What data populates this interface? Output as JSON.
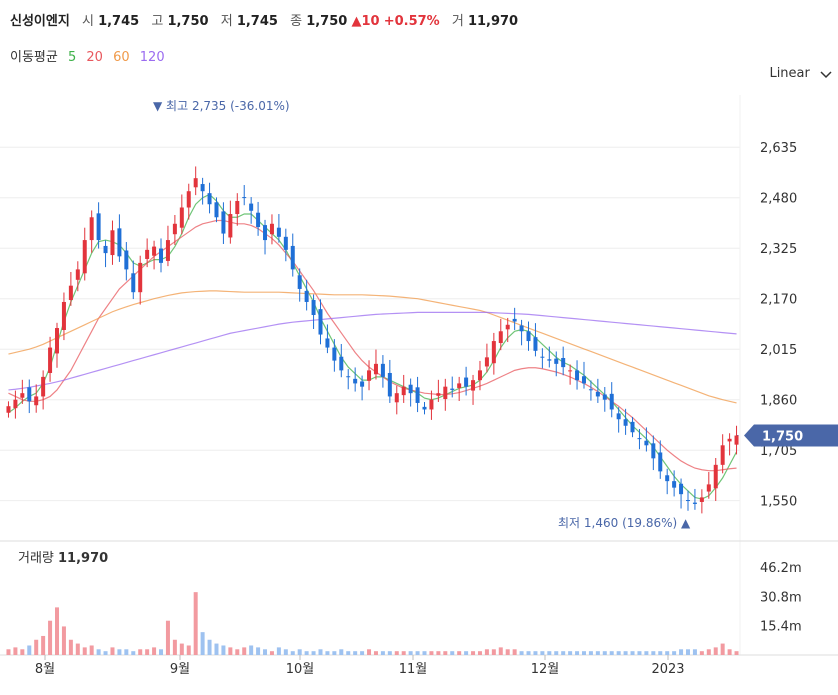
{
  "header": {
    "name": "신성이엔지",
    "open_label": "시",
    "open": "1,745",
    "high_label": "고",
    "high": "1,750",
    "low_label": "저",
    "low": "1,745",
    "close_label": "종",
    "close": "1,750",
    "change_arrow": "▲",
    "change": "10",
    "change_pct": "+0.57%",
    "volume_label": "거",
    "volume": "11,970"
  },
  "ma_legend": {
    "title": "이동평균",
    "items": [
      {
        "label": "5",
        "color": "#3fb24a"
      },
      {
        "label": "20",
        "color": "#e8585e"
      },
      {
        "label": "60",
        "color": "#f09a4a"
      },
      {
        "label": "120",
        "color": "#9b6cf0"
      }
    ]
  },
  "scale_selector": {
    "label": "Linear",
    "icon": "chevron-down-icon"
  },
  "colors": {
    "up": "#e2343c",
    "down": "#1f6fd6",
    "current_tag": "#4a67a8",
    "annot": "#4a67a8"
  },
  "chart_data": {
    "type": "candlestick",
    "price_axis": {
      "ticks": [
        "2,635",
        "2,480",
        "2,325",
        "2,170",
        "2,015",
        "1,860",
        "1,705",
        "1,550"
      ],
      "range": [
        1460,
        2780
      ]
    },
    "volume_axis": {
      "title": "거래량",
      "current": "11,970",
      "ticks": [
        "46.2m",
        "30.8m",
        "15.4m"
      ]
    },
    "x_labels": [
      "8월",
      "9월",
      "10월",
      "11월",
      "12월",
      "2023"
    ],
    "current_price": "1,750",
    "max_annotation": {
      "arrow": "▼",
      "label": "최고",
      "value": "2,735",
      "pct": "(-36.01%)"
    },
    "min_annotation": {
      "arrow": "▲",
      "label": "최저",
      "value": "1,460",
      "pct": "(19.86%)"
    },
    "closes": [
      1840,
      1860,
      1880,
      1855,
      1870,
      1930,
      2020,
      2080,
      2160,
      2210,
      2260,
      2350,
      2420,
      2350,
      2310,
      2380,
      2300,
      2260,
      2190,
      2280,
      2320,
      2330,
      2280,
      2350,
      2400,
      2450,
      2500,
      2540,
      2500,
      2460,
      2420,
      2370,
      2430,
      2470,
      2480,
      2440,
      2390,
      2350,
      2400,
      2360,
      2320,
      2260,
      2200,
      2160,
      2120,
      2060,
      2020,
      1980,
      1950,
      1930,
      1910,
      1900,
      1950,
      1970,
      1930,
      1870,
      1880,
      1900,
      1880,
      1850,
      1830,
      1860,
      1880,
      1900,
      1890,
      1910,
      1900,
      1920,
      1950,
      1990,
      2040,
      2070,
      2090,
      2100,
      2070,
      2040,
      2010,
      1990,
      1980,
      1970,
      1960,
      1950,
      1920,
      1910,
      1890,
      1870,
      1860,
      1830,
      1800,
      1780,
      1760,
      1740,
      1720,
      1680,
      1640,
      1610,
      1590,
      1570,
      1550,
      1540,
      1560,
      1600,
      1660,
      1720,
      1740,
      1750
    ],
    "ma_series": [
      {
        "period": "5",
        "values": [
          1820,
          1835,
          1855,
          1870,
          1880,
          1910,
          1960,
          2030,
          2100,
          2160,
          2210,
          2260,
          2310,
          2345,
          2350,
          2345,
          2335,
          2310,
          2280,
          2270,
          2280,
          2290,
          2290,
          2300,
          2330,
          2370,
          2420,
          2460,
          2480,
          2490,
          2470,
          2440,
          2420,
          2420,
          2430,
          2430,
          2410,
          2390,
          2370,
          2350,
          2320,
          2280,
          2240,
          2200,
          2160,
          2110,
          2070,
          2030,
          1990,
          1960,
          1940,
          1920,
          1920,
          1930,
          1930,
          1920,
          1910,
          1900,
          1890,
          1880,
          1865,
          1860,
          1865,
          1875,
          1885,
          1895,
          1900,
          1905,
          1920,
          1945,
          1980,
          2020,
          2050,
          2070,
          2075,
          2070,
          2050,
          2030,
          2010,
          1990,
          1975,
          1965,
          1950,
          1935,
          1915,
          1895,
          1875,
          1855,
          1830,
          1805,
          1780,
          1760,
          1740,
          1715,
          1685,
          1655,
          1625,
          1600,
          1580,
          1560,
          1555,
          1565,
          1590,
          1620,
          1660,
          1700
        ]
      },
      {
        "period": "20",
        "values": [
          1880,
          1870,
          1860,
          1855,
          1855,
          1860,
          1870,
          1890,
          1920,
          1950,
          1990,
          2030,
          2070,
          2110,
          2140,
          2170,
          2200,
          2220,
          2240,
          2260,
          2280,
          2300,
          2315,
          2330,
          2345,
          2360,
          2375,
          2390,
          2400,
          2405,
          2410,
          2410,
          2405,
          2400,
          2400,
          2395,
          2385,
          2370,
          2355,
          2335,
          2310,
          2285,
          2255,
          2225,
          2195,
          2160,
          2125,
          2095,
          2065,
          2035,
          2005,
          1980,
          1960,
          1945,
          1930,
          1915,
          1905,
          1895,
          1890,
          1885,
          1880,
          1878,
          1876,
          1876,
          1878,
          1882,
          1888,
          1895,
          1902,
          1910,
          1920,
          1930,
          1940,
          1950,
          1955,
          1958,
          1958,
          1955,
          1950,
          1945,
          1938,
          1930,
          1920,
          1910,
          1898,
          1885,
          1870,
          1855,
          1840,
          1822,
          1805,
          1785,
          1765,
          1745,
          1725,
          1705,
          1688,
          1672,
          1660,
          1650,
          1645,
          1642,
          1642,
          1645,
          1648,
          1650
        ]
      },
      {
        "period": "60",
        "values": [
          2000,
          2005,
          2010,
          2015,
          2022,
          2030,
          2040,
          2050,
          2060,
          2070,
          2080,
          2090,
          2100,
          2110,
          2120,
          2130,
          2138,
          2145,
          2152,
          2158,
          2164,
          2170,
          2175,
          2180,
          2184,
          2188,
          2190,
          2192,
          2193,
          2194,
          2194,
          2193,
          2192,
          2191,
          2190,
          2190,
          2190,
          2190,
          2190,
          2190,
          2189,
          2188,
          2187,
          2186,
          2185,
          2184,
          2183,
          2182,
          2182,
          2182,
          2182,
          2182,
          2181,
          2180,
          2179,
          2178,
          2176,
          2174,
          2172,
          2170,
          2166,
          2162,
          2158,
          2154,
          2150,
          2146,
          2142,
          2138,
          2134,
          2128,
          2120,
          2112,
          2104,
          2096,
          2088,
          2080,
          2072,
          2064,
          2056,
          2048,
          2040,
          2032,
          2024,
          2016,
          2008,
          2000,
          1992,
          1984,
          1976,
          1968,
          1960,
          1952,
          1944,
          1936,
          1928,
          1920,
          1912,
          1904,
          1896,
          1888,
          1880,
          1872,
          1866,
          1860,
          1855,
          1850
        ]
      },
      {
        "period": "120",
        "values": [
          1890,
          1892,
          1895,
          1898,
          1902,
          1906,
          1910,
          1915,
          1920,
          1926,
          1932,
          1938,
          1944,
          1950,
          1956,
          1962,
          1968,
          1974,
          1980,
          1986,
          1992,
          1998,
          2004,
          2010,
          2016,
          2022,
          2028,
          2034,
          2040,
          2046,
          2052,
          2058,
          2064,
          2068,
          2072,
          2076,
          2080,
          2084,
          2088,
          2092,
          2095,
          2098,
          2100,
          2102,
          2104,
          2106,
          2108,
          2110,
          2112,
          2114,
          2116,
          2118,
          2120,
          2122,
          2123,
          2124,
          2125,
          2126,
          2127,
          2128,
          2128,
          2128,
          2128,
          2128,
          2128,
          2128,
          2128,
          2128,
          2128,
          2128,
          2127,
          2126,
          2125,
          2124,
          2123,
          2122,
          2120,
          2118,
          2116,
          2114,
          2112,
          2110,
          2108,
          2106,
          2104,
          2102,
          2100,
          2098,
          2096,
          2094,
          2092,
          2090,
          2088,
          2086,
          2084,
          2082,
          2080,
          2078,
          2076,
          2074,
          2072,
          2070,
          2068,
          2066,
          2064,
          2062
        ]
      }
    ],
    "volumes_m": [
      3,
      4,
      3,
      5,
      8,
      10,
      18,
      25,
      15,
      8,
      6,
      4,
      5,
      3,
      2,
      4,
      3,
      3,
      2,
      3,
      3,
      4,
      3,
      18,
      8,
      6,
      5,
      33,
      12,
      8,
      6,
      5,
      4,
      3,
      4,
      5,
      4,
      3,
      2,
      4,
      3,
      2,
      3,
      2,
      2,
      3,
      2,
      2,
      3,
      2,
      2,
      2,
      3,
      2,
      2,
      2,
      2,
      2,
      2,
      2,
      2,
      2,
      2,
      2,
      2,
      2,
      2,
      2,
      2,
      3,
      3,
      4,
      3,
      3,
      2,
      2,
      2,
      2,
      2,
      2,
      2,
      2,
      2,
      2,
      2,
      2,
      2,
      2,
      2,
      2,
      2,
      2,
      2,
      2,
      2,
      2,
      2,
      3,
      3,
      3,
      2,
      3,
      4,
      6,
      3,
      2
    ]
  }
}
